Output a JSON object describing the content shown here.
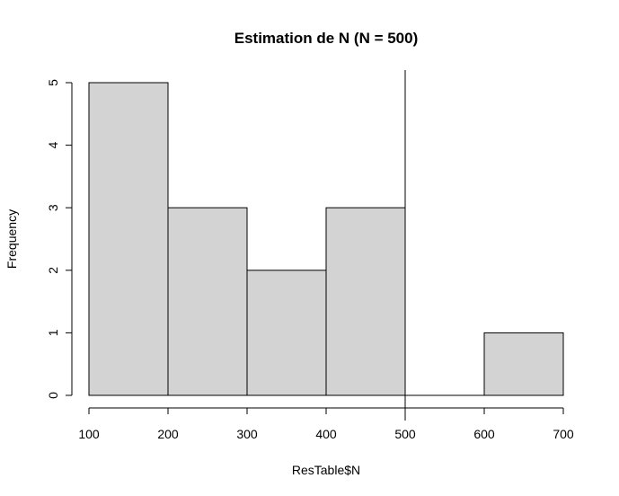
{
  "chart_data": {
    "type": "bar",
    "title": "Estimation de N (N = 500)",
    "xlabel": "ResTable$N",
    "ylabel": "Frequency",
    "bins": [
      {
        "from": 100,
        "to": 200,
        "count": 5
      },
      {
        "from": 200,
        "to": 300,
        "count": 3
      },
      {
        "from": 300,
        "to": 400,
        "count": 2
      },
      {
        "from": 400,
        "to": 500,
        "count": 3
      },
      {
        "from": 500,
        "to": 600,
        "count": 0
      },
      {
        "from": 600,
        "to": 700,
        "count": 1
      }
    ],
    "x_ticks": [
      "100",
      "200",
      "300",
      "400",
      "500",
      "600",
      "700"
    ],
    "y_ticks": [
      "0",
      "1",
      "2",
      "3",
      "4",
      "5"
    ],
    "xlim": [
      100,
      700
    ],
    "ylim": [
      0,
      5
    ],
    "reference_line_x": 500,
    "bar_fill": "#d3d3d3",
    "bar_stroke": "#000000",
    "grid": false,
    "legend": "none"
  }
}
